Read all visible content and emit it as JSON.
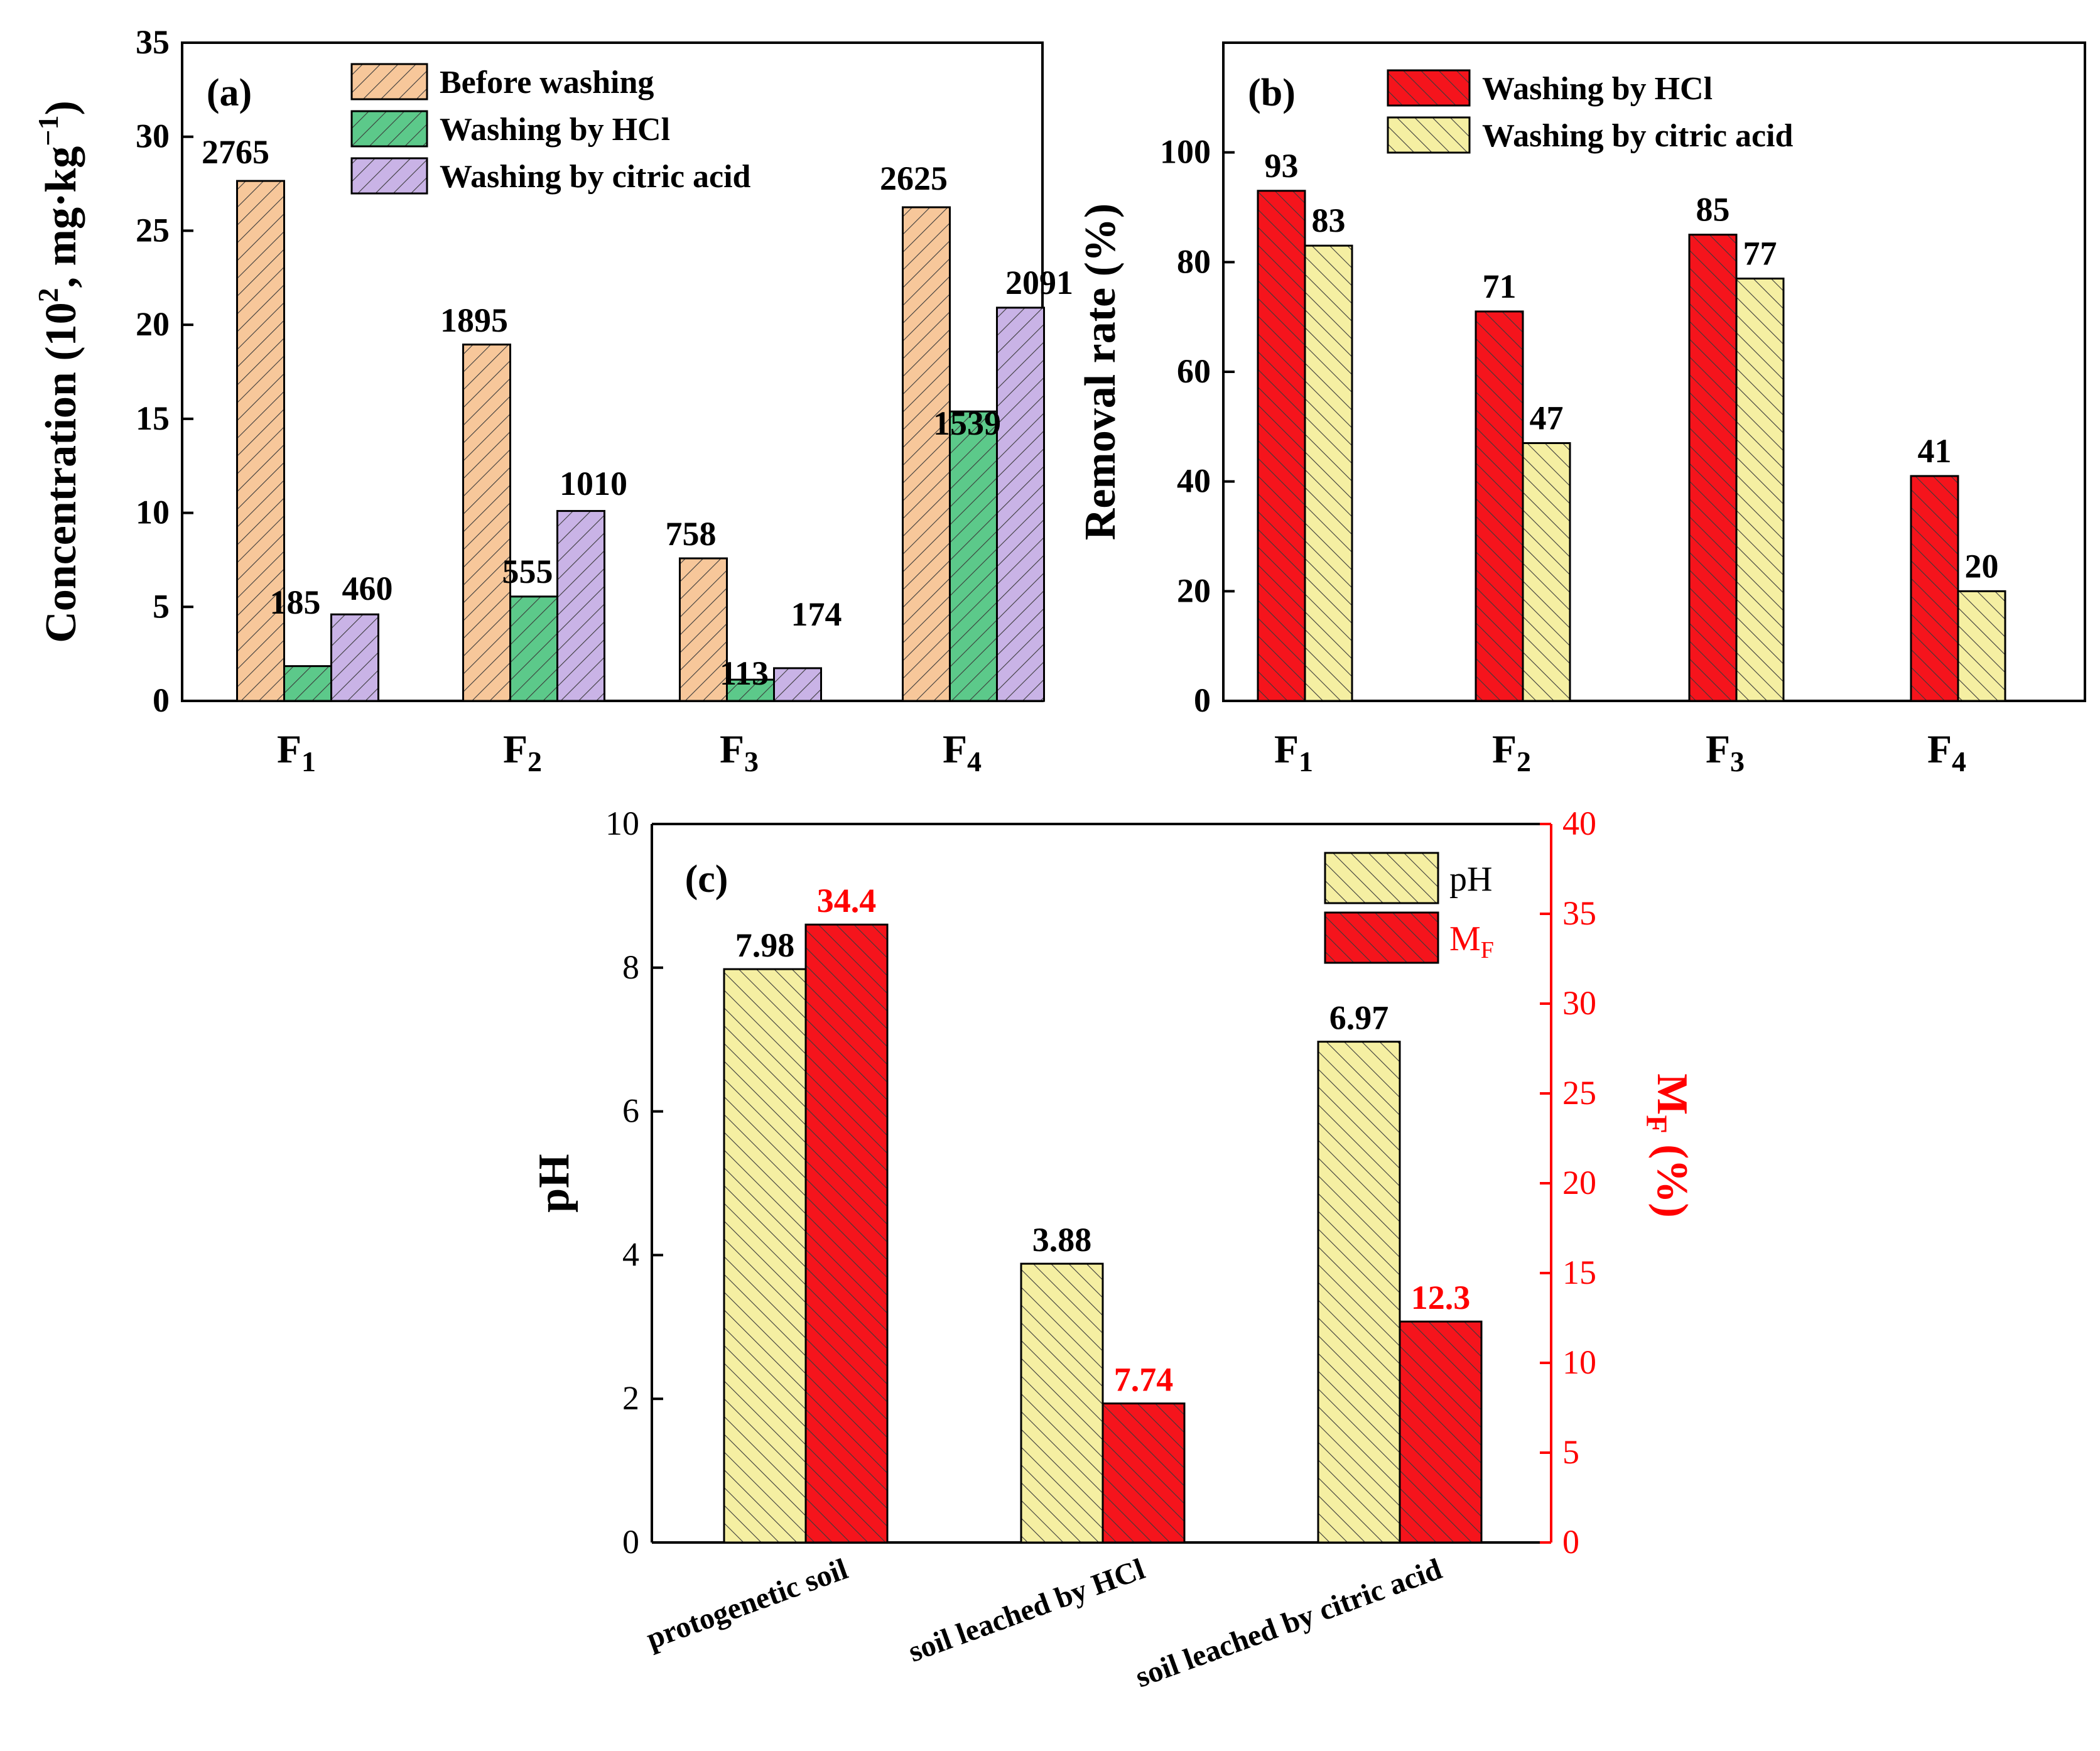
{
  "colors": {
    "orange": "#F7C79A",
    "green": "#5CC98A",
    "purple": "#C9B3E6",
    "red": "#F5141C",
    "lightyellow": "#F5EFA2",
    "black": "#000000",
    "axis_red": "#FF0000"
  },
  "chart_data": [
    {
      "type": "bar",
      "panel_label": "(a)",
      "categories": [
        "F",
        "F",
        "F",
        "F"
      ],
      "category_subscripts": [
        "1",
        "2",
        "3",
        "4"
      ],
      "ylabel_prefix": "Concentration (10",
      "ylabel_sup1": "2",
      "ylabel_mid": ", mg·kg",
      "ylabel_sup2": "−1",
      "ylabel_suffix": ")",
      "ylim": [
        0,
        35
      ],
      "yticks": [
        "0",
        "5",
        "10",
        "15",
        "20",
        "25",
        "30",
        "35"
      ],
      "legend_position": "top-right",
      "series": [
        {
          "name": "Before washing",
          "color": "orange",
          "values": [
            27.65,
            18.95,
            7.58,
            26.25
          ],
          "labels": [
            "2765",
            "1895",
            "758",
            "2625"
          ]
        },
        {
          "name": "Washing by HCl",
          "color": "green",
          "values": [
            1.85,
            5.55,
            1.13,
            15.39
          ],
          "labels": [
            "185",
            "555",
            "113",
            "1539"
          ]
        },
        {
          "name": "Washing by citric acid",
          "color": "purple",
          "values": [
            4.6,
            10.1,
            1.74,
            20.91
          ],
          "labels": [
            "460",
            "1010",
            "174",
            "2091"
          ]
        }
      ]
    },
    {
      "type": "bar",
      "panel_label": "(b)",
      "categories": [
        "F",
        "F",
        "F",
        "F"
      ],
      "category_subscripts": [
        "1",
        "2",
        "3",
        "4"
      ],
      "ylabel": "Removal rate (%)",
      "ylim": [
        0,
        120
      ],
      "yticks": [
        "0",
        "20",
        "40",
        "60",
        "80",
        "100"
      ],
      "legend_position": "top-right",
      "series": [
        {
          "name": "Washing by HCl",
          "color": "red",
          "values": [
            93,
            71,
            85,
            41
          ],
          "labels": [
            "93",
            "71",
            "85",
            "41"
          ]
        },
        {
          "name": "Washing by citric acid",
          "color": "lightyellow",
          "values": [
            83,
            47,
            77,
            20
          ],
          "labels": [
            "83",
            "47",
            "77",
            "20"
          ]
        }
      ]
    },
    {
      "type": "bar",
      "panel_label": "(c)",
      "categories": [
        "protogenetic soil",
        "soil leached by HCl",
        "soil leached by citric acid"
      ],
      "ylabel_left": "pH",
      "ylabel_right_main": "M",
      "ylabel_right_sub": "F",
      "ylabel_right_suffix": " (%)",
      "ylim_left": [
        0,
        10
      ],
      "ylim_right": [
        0,
        40
      ],
      "yticks_left": [
        "0",
        "2",
        "4",
        "6",
        "8",
        "10"
      ],
      "yticks_right": [
        "0",
        "5",
        "10",
        "15",
        "20",
        "25",
        "30",
        "35",
        "40"
      ],
      "legend_position": "top-right",
      "series": [
        {
          "name": "pH",
          "name_sub": "",
          "axis": "left",
          "color": "lightyellow",
          "values": [
            7.98,
            3.88,
            6.97
          ],
          "labels": [
            "7.98",
            "3.88",
            "6.97"
          ]
        },
        {
          "name": "M",
          "name_sub": "F",
          "axis": "right",
          "color": "red",
          "values": [
            34.4,
            7.74,
            12.3
          ],
          "labels": [
            "34.4",
            "7.74",
            "12.3"
          ]
        }
      ]
    }
  ]
}
